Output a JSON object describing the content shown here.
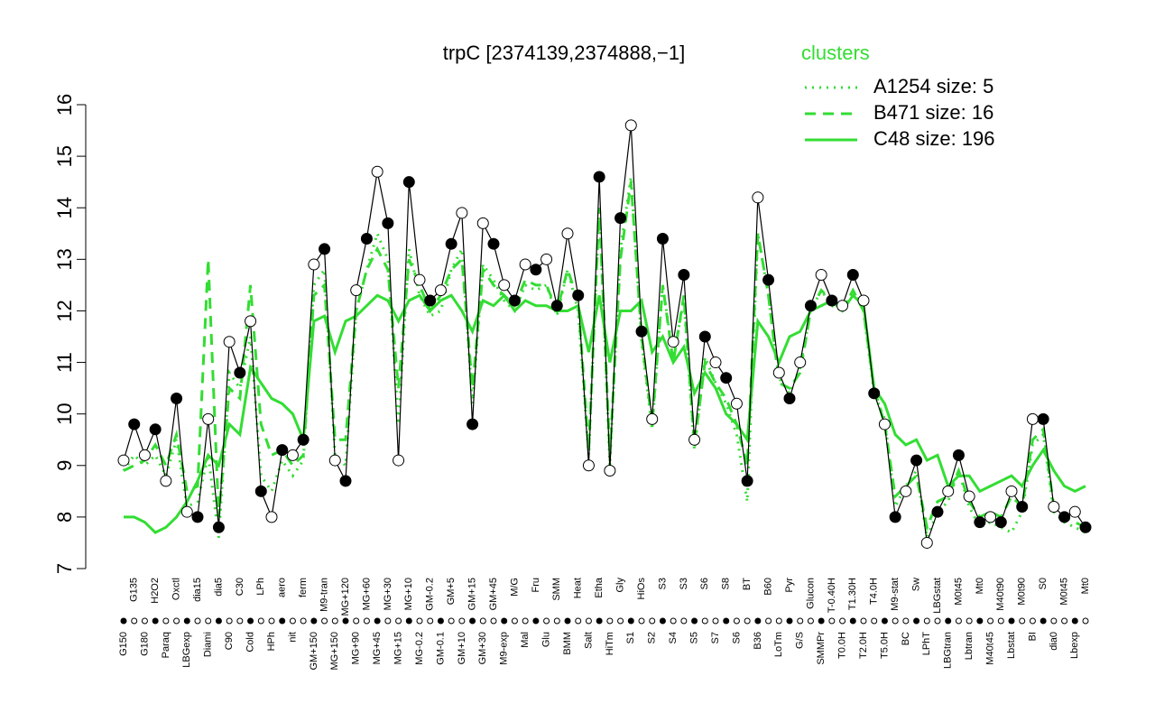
{
  "chart_data": {
    "type": "line",
    "title": "trpC [2374139,2374888,−1]",
    "legend_title": "clusters",
    "legend_position": "top-right",
    "legend_color": "#33dd33",
    "categories": [
      "G150",
      "G135",
      "G180",
      "H2O2",
      "Paraq",
      "Oxctl",
      "LBGexp",
      "dia15",
      "Diami",
      "dia5",
      "C90",
      "C30",
      "Cold",
      "LPh",
      "HPh",
      "aero",
      "nit",
      "ferm",
      "GM+150",
      "M9-tran",
      "MG+150",
      "MG+120",
      "MG+90",
      "MG+60",
      "MG+45",
      "MG+30",
      "MG+15",
      "MG+10",
      "MG-0.2",
      "GM-0.2",
      "GM-0.1",
      "GM+5",
      "GM+10",
      "GM+15",
      "GM+30",
      "GM+45",
      "M9-exp",
      "M/G",
      "Mal",
      "Fru",
      "Glu",
      "SMM",
      "BMM",
      "Heat",
      "Salt",
      "Etha",
      "HiTm",
      "Gly",
      "S1",
      "HiOs",
      "S2",
      "S3",
      "S4",
      "S3",
      "S5",
      "S6",
      "S7",
      "S8",
      "S6",
      "BT",
      "B36",
      "B60",
      "LoTm",
      "Pyr",
      "G/S",
      "Glucon",
      "SMMPr",
      "T-0.40H",
      "T0.0H",
      "T1.30H",
      "T2.0H",
      "T4.0H",
      "T5.0H",
      "M9-stat",
      "BC",
      "Sw",
      "LPhT",
      "LBGstat",
      "LBGtran",
      "M0t45",
      "Lbtran",
      "Mt0",
      "M40t45",
      "M40t90",
      "Lbstat",
      "M0t90",
      "BI",
      "S0",
      "dia0",
      "M0t45",
      "Lbexp",
      "Mt0"
    ],
    "series": [
      {
        "color": "#000000",
        "style": "points",
        "values": [
          9.1,
          9.8,
          9.2,
          9.7,
          8.7,
          10.3,
          8.1,
          8.0,
          9.9,
          7.8,
          11.4,
          10.8,
          11.8,
          8.5,
          8.0,
          9.3,
          9.2,
          9.5,
          12.9,
          13.2,
          9.1,
          8.7,
          12.4,
          13.4,
          14.7,
          13.7,
          9.1,
          14.5,
          12.6,
          12.2,
          12.4,
          13.3,
          13.9,
          9.8,
          13.7,
          13.3,
          12.5,
          12.2,
          12.9,
          12.8,
          13.0,
          12.1,
          13.5,
          12.3,
          9.0,
          14.6,
          8.9,
          13.8,
          15.6,
          11.6,
          9.9,
          13.4,
          11.4,
          12.7,
          9.5,
          11.5,
          11.0,
          10.7,
          10.2,
          8.7,
          14.2,
          12.6,
          10.8,
          10.3,
          11.0,
          12.1,
          12.7,
          12.2,
          12.1,
          12.7,
          12.2,
          10.4,
          9.8,
          8.0,
          8.5,
          9.1,
          7.5,
          8.1,
          8.5,
          9.2,
          8.4,
          7.9,
          8.0,
          7.9,
          8.5,
          8.2,
          9.9,
          9.9,
          8.2,
          8.0,
          8.1,
          7.8
        ]
      },
      {
        "name": "A1254 size: 5",
        "color": "#33dd33",
        "style": "dotted",
        "values": [
          8.9,
          9.2,
          9.0,
          9.2,
          8.8,
          9.5,
          8.2,
          8.3,
          9.2,
          7.6,
          10.8,
          10.5,
          11.5,
          8.8,
          8.5,
          9.1,
          8.8,
          9.1,
          12.5,
          12.8,
          9.2,
          9.0,
          12.0,
          12.8,
          13.5,
          13.0,
          9.8,
          13.2,
          12.3,
          11.9,
          12.0,
          12.8,
          13.2,
          10.2,
          12.9,
          12.6,
          12.2,
          12.0,
          12.5,
          12.4,
          12.5,
          11.9,
          12.8,
          12.0,
          9.2,
          14.0,
          9.0,
          13.2,
          14.6,
          11.4,
          9.7,
          12.5,
          11.1,
          12.2,
          9.3,
          11.1,
          10.6,
          10.2,
          9.6,
          8.3,
          13.5,
          12.3,
          10.7,
          10.4,
          10.9,
          12.0,
          12.4,
          12.1,
          12.0,
          12.4,
          12.0,
          10.4,
          9.9,
          8.2,
          8.6,
          8.9,
          7.6,
          8.1,
          8.3,
          8.9,
          8.2,
          7.8,
          7.9,
          7.8,
          7.7,
          8.1,
          9.4,
          9.6,
          8.1,
          7.9,
          7.8,
          7.7
        ]
      },
      {
        "name": "B471 size: 16",
        "color": "#33dd33",
        "style": "dashed",
        "values": [
          8.9,
          9.0,
          9.1,
          9.4,
          9.0,
          9.6,
          8.5,
          8.6,
          13.0,
          8.0,
          10.5,
          10.3,
          12.5,
          9.8,
          9.2,
          9.3,
          9.0,
          9.2,
          12.3,
          12.5,
          9.5,
          9.5,
          12.0,
          12.8,
          13.2,
          12.8,
          10.5,
          13.0,
          12.5,
          12.0,
          12.3,
          12.8,
          13.0,
          10.5,
          12.8,
          12.5,
          12.3,
          12.1,
          12.6,
          12.5,
          12.5,
          12.0,
          12.8,
          12.2,
          9.3,
          14.0,
          9.2,
          13.0,
          14.5,
          11.5,
          9.8,
          12.5,
          11.0,
          12.3,
          9.4,
          11.0,
          10.6,
          10.3,
          9.8,
          9.0,
          13.5,
          12.3,
          10.6,
          10.5,
          10.8,
          12.0,
          12.4,
          12.2,
          12.0,
          12.4,
          12.0,
          10.5,
          9.8,
          8.4,
          8.6,
          8.8,
          7.8,
          8.3,
          8.4,
          8.9,
          8.3,
          8.0,
          8.1,
          8.0,
          8.4,
          8.2,
          9.5,
          9.7,
          8.2,
          8.0,
          7.9,
          7.8
        ]
      },
      {
        "name": "C48 size: 196",
        "color": "#33dd33",
        "style": "solid",
        "values": [
          8.0,
          8.0,
          7.9,
          7.7,
          7.8,
          8.0,
          8.3,
          8.7,
          9.2,
          9.0,
          9.8,
          9.6,
          10.9,
          10.6,
          10.3,
          10.2,
          10.0,
          9.5,
          11.8,
          11.9,
          11.2,
          11.8,
          11.9,
          12.1,
          12.3,
          12.2,
          11.8,
          12.2,
          12.3,
          12.0,
          12.2,
          12.3,
          12.0,
          11.6,
          12.2,
          12.1,
          12.3,
          12.0,
          12.2,
          12.1,
          12.1,
          12.0,
          12.0,
          12.1,
          11.2,
          12.3,
          11.0,
          12.0,
          12.0,
          12.2,
          11.2,
          11.5,
          11.0,
          11.3,
          10.4,
          10.8,
          10.5,
          10.0,
          9.8,
          9.5,
          11.8,
          11.5,
          11.0,
          11.5,
          11.6,
          12.0,
          12.1,
          12.2,
          12.0,
          12.3,
          12.1,
          10.5,
          10.2,
          9.6,
          9.4,
          9.5,
          9.1,
          9.2,
          8.6,
          8.8,
          8.8,
          8.5,
          8.6,
          8.7,
          8.8,
          8.6,
          9.0,
          9.3,
          8.9,
          8.6,
          8.5,
          8.6
        ]
      }
    ],
    "ylim": [
      7,
      16
    ],
    "yticks": [
      7,
      8,
      9,
      10,
      11,
      12,
      13,
      14,
      15,
      16
    ]
  }
}
